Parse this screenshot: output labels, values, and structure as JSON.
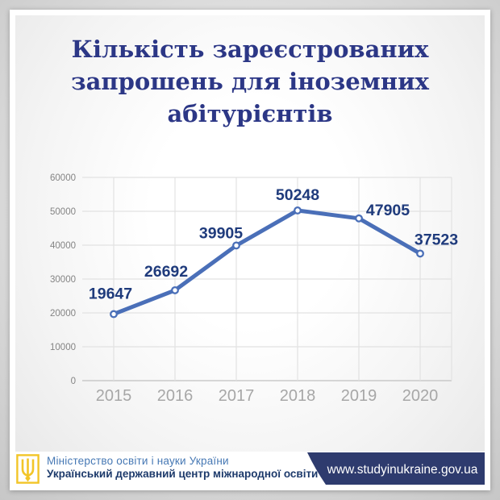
{
  "page": {
    "title_lines": [
      "Кількість зареєстрованих",
      "запрошень для іноземних",
      "абітурієнтів"
    ],
    "title": "Кількість зареєстрованих запрошень для іноземних абітурієнтів"
  },
  "chart_data": {
    "type": "line",
    "categories": [
      "2015",
      "2016",
      "2017",
      "2018",
      "2019",
      "2020"
    ],
    "values": [
      19647,
      26692,
      39905,
      50248,
      47905,
      37523
    ],
    "data_labels": [
      "19647",
      "26692",
      "39905",
      "50248",
      "47905",
      "37523"
    ],
    "y_ticks": [
      0,
      10000,
      20000,
      30000,
      40000,
      50000,
      60000
    ],
    "ylim": [
      0,
      60000
    ],
    "title": "",
    "xlabel": "",
    "ylabel": "",
    "grid": true,
    "legend": "none",
    "marker": "circle-open"
  },
  "colors": {
    "title": "#2c3786",
    "line": "#4a6fb8",
    "marker_fill": "#ffffff",
    "data_label": "#1f3b7c",
    "grid": "#e2e2e2",
    "axis_zero": "#c9c9c9",
    "x_tick": "#a7a7a7",
    "y_tick": "#848484",
    "banner_bg": "#2e3b6e",
    "banner_text": "#ffffff",
    "ministry_line1": "#4678b4",
    "ministry_line2": "#1d3a6b",
    "trident_gold": "#f2c528"
  },
  "footer": {
    "ministry_line1": "Міністерство освіти і науки України",
    "ministry_line2": "Український державний центр міжнародної освіти",
    "website": "www.studyinukraine.gov.ua"
  }
}
